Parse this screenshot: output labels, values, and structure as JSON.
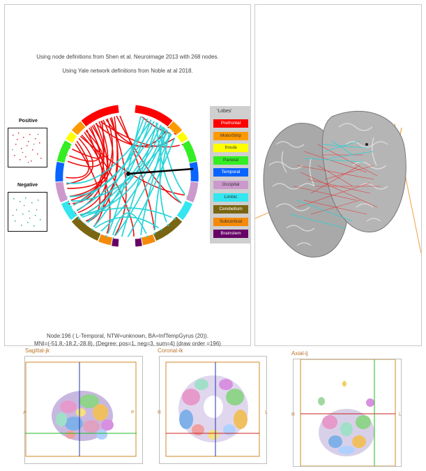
{
  "chord": {
    "title_line1": "Using node definitions from Shen et al. Neuroimage 2013 with 268 nodes.",
    "title_line2": "Using Yale network definitions from Noble at al 2018.",
    "positive_label": "Positive",
    "negative_label": "Negative",
    "node_info_line1": "Node:196 ( L-Temporal, NTW=unknown, BA=InfTempGyrus (20)).",
    "node_info_line2": "MNI=(-51.8,-18.2,-28.8), (Degree: pos=1, neg=3, sum=4)  (draw order =196)"
  },
  "legend": {
    "title": "'Lobes'",
    "items": [
      {
        "label": "Prefrontal",
        "color": "#ff0000",
        "text_color": "#ffffff"
      },
      {
        "label": "MotorStrip",
        "color": "#ff9900",
        "text_color": "#333333"
      },
      {
        "label": "Insula",
        "color": "#ffff00",
        "text_color": "#333333"
      },
      {
        "label": "Parietal",
        "color": "#33ee22",
        "text_color": "#333333"
      },
      {
        "label": "Temporal",
        "color": "#0a64ff",
        "text_color": "#ffffff"
      },
      {
        "label": "Occipital",
        "color": "#cc99cc",
        "text_color": "#333333"
      },
      {
        "label": "Limbic",
        "color": "#33e6f0",
        "text_color": "#333333"
      },
      {
        "label": "Cerebellum",
        "color": "#7a6612",
        "text_color": "#ffffff"
      },
      {
        "label": "Subcortical",
        "color": "#f58a0a",
        "text_color": "#333333"
      },
      {
        "label": "Brainstem",
        "color": "#660066",
        "text_color": "#ffffff"
      }
    ]
  },
  "views": {
    "sagittal": {
      "title": "Sagittal-jk",
      "left_label": "A",
      "right_label": "P"
    },
    "coronal": {
      "title": "Coronal-ik",
      "left_label": "R",
      "right_label": "L"
    },
    "axial": {
      "title": "Axial-ij",
      "left_label": "R",
      "right_label": "L"
    }
  },
  "colors": {
    "positive_link": "#ee0000",
    "negative_link": "#22d3d8",
    "slice_crosshair_h": "#22bb22",
    "slice_crosshair_v": "#2233aa"
  }
}
